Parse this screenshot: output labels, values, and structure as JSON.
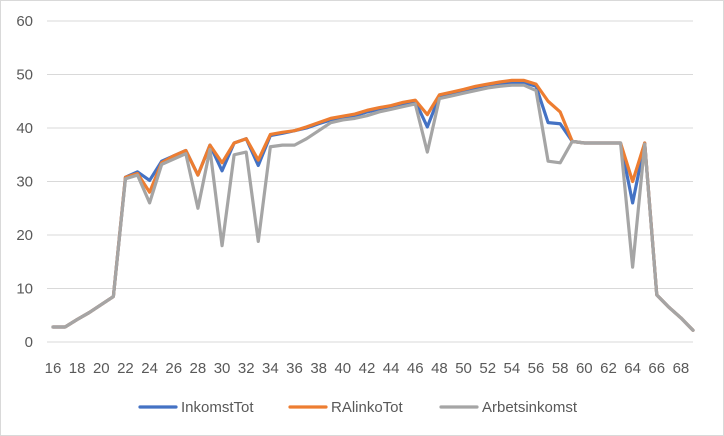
{
  "chart_data": {
    "type": "line",
    "title": "",
    "xlabel": "",
    "ylabel": "",
    "ylim": [
      0,
      60
    ],
    "yticks": [
      0,
      10,
      20,
      30,
      40,
      50,
      60
    ],
    "grid": "horizontal",
    "legend_position": "bottom",
    "x": [
      16,
      17,
      18,
      19,
      20,
      21,
      22,
      23,
      24,
      25,
      26,
      27,
      28,
      29,
      30,
      31,
      32,
      33,
      34,
      35,
      36,
      37,
      38,
      39,
      40,
      41,
      42,
      43,
      44,
      45,
      46,
      47,
      48,
      49,
      50,
      51,
      52,
      53,
      54,
      55,
      56,
      57,
      58,
      59,
      60,
      61,
      62,
      63,
      64,
      65,
      66,
      67,
      68,
      69
    ],
    "xtick_labels": [
      "16",
      "18",
      "20",
      "22",
      "24",
      "26",
      "28",
      "30",
      "32",
      "34",
      "36",
      "38",
      "40",
      "42",
      "44",
      "46",
      "48",
      "50",
      "52",
      "54",
      "56",
      "58",
      "60",
      "62",
      "64",
      "66",
      "68"
    ],
    "series": [
      {
        "name": "InkomstTot",
        "color": "#4472C4",
        "values": [
          2.8,
          2.8,
          4.2,
          5.5,
          7.0,
          8.5,
          30.8,
          31.8,
          30.2,
          33.8,
          34.8,
          35.8,
          31.2,
          36.8,
          32.0,
          37.2,
          38.0,
          33.0,
          38.6,
          39.0,
          39.5,
          40.0,
          40.8,
          41.5,
          42.0,
          42.3,
          43.0,
          43.5,
          44.0,
          44.5,
          45.0,
          40.2,
          46.0,
          46.5,
          47.0,
          47.5,
          48.0,
          48.2,
          48.5,
          48.5,
          47.8,
          41.0,
          40.8,
          37.5,
          37.2,
          37.2,
          37.2,
          37.2,
          26.0,
          37.2,
          8.8,
          6.5,
          4.5,
          2.2
        ]
      },
      {
        "name": "RAlinkoTot",
        "color": "#ED7D31",
        "values": [
          2.8,
          2.8,
          4.2,
          5.5,
          7.0,
          8.5,
          30.8,
          31.5,
          28.0,
          33.5,
          34.8,
          35.8,
          31.2,
          36.8,
          33.5,
          37.2,
          38.0,
          34.0,
          38.8,
          39.2,
          39.5,
          40.2,
          41.0,
          41.8,
          42.2,
          42.6,
          43.3,
          43.8,
          44.2,
          44.8,
          45.2,
          42.5,
          46.2,
          46.7,
          47.2,
          47.8,
          48.2,
          48.6,
          48.9,
          48.9,
          48.2,
          45.0,
          43.0,
          37.5,
          37.2,
          37.2,
          37.2,
          37.2,
          30.0,
          37.2,
          8.8,
          6.5,
          4.5,
          2.2
        ]
      },
      {
        "name": "Arbetsinkomst",
        "color": "#A5A5A5",
        "values": [
          2.8,
          2.8,
          4.2,
          5.5,
          7.0,
          8.5,
          30.5,
          31.2,
          26.0,
          33.2,
          34.2,
          35.2,
          25.0,
          36.0,
          18.0,
          35.0,
          35.5,
          18.8,
          36.5,
          36.8,
          36.8,
          38.0,
          39.5,
          41.0,
          41.5,
          41.8,
          42.3,
          43.0,
          43.5,
          44.0,
          44.5,
          35.5,
          45.5,
          46.0,
          46.5,
          47.0,
          47.5,
          47.8,
          48.0,
          48.0,
          47.0,
          33.8,
          33.5,
          37.5,
          37.2,
          37.2,
          37.2,
          37.2,
          14.0,
          37.0,
          8.8,
          6.5,
          4.5,
          2.2
        ]
      }
    ]
  }
}
